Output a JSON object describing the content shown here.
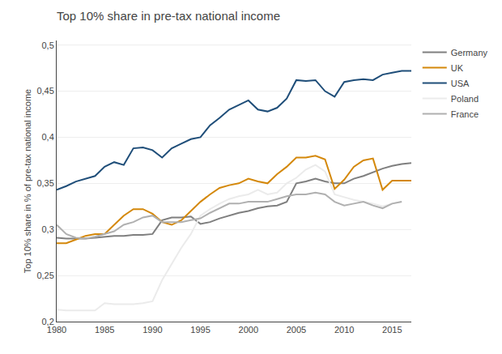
{
  "chart_data": {
    "type": "line",
    "title": "Top 10% share in pre-tax national income",
    "ylabel": "Top 10% share in % of pre-tax national income",
    "x": [
      1980,
      1981,
      1982,
      1983,
      1984,
      1985,
      1986,
      1987,
      1988,
      1989,
      1990,
      1991,
      1992,
      1993,
      1994,
      1995,
      1996,
      1997,
      1998,
      1999,
      2000,
      2001,
      2002,
      2003,
      2004,
      2005,
      2006,
      2007,
      2008,
      2009,
      2010,
      2011,
      2012,
      2013,
      2014,
      2015,
      2016,
      2017
    ],
    "series": [
      {
        "name": "Germany",
        "color": "#7f7f7f",
        "values": [
          0.291,
          0.29,
          0.29,
          0.29,
          0.291,
          0.292,
          0.293,
          0.293,
          0.294,
          0.294,
          0.295,
          0.31,
          0.313,
          0.313,
          0.314,
          0.306,
          0.308,
          0.312,
          0.315,
          0.318,
          0.32,
          0.323,
          0.325,
          0.326,
          0.33,
          0.35,
          0.352,
          0.355,
          0.352,
          0.35,
          0.35,
          0.355,
          0.358,
          0.362,
          0.366,
          0.369,
          0.371,
          0.372
        ]
      },
      {
        "name": "UK",
        "color": "#d4880a",
        "values": [
          0.285,
          0.285,
          0.289,
          0.293,
          0.295,
          0.295,
          0.305,
          0.315,
          0.322,
          0.322,
          0.317,
          0.308,
          0.305,
          0.31,
          0.32,
          0.33,
          0.338,
          0.345,
          0.348,
          0.35,
          0.355,
          0.352,
          0.35,
          0.36,
          0.368,
          0.378,
          0.378,
          0.38,
          0.376,
          0.344,
          0.354,
          0.368,
          0.375,
          0.377,
          0.343,
          0.353,
          0.353,
          0.353
        ]
      },
      {
        "name": "USA",
        "color": "#1f4e79",
        "values": [
          0.343,
          0.347,
          0.352,
          0.355,
          0.358,
          0.368,
          0.373,
          0.37,
          0.388,
          0.389,
          0.386,
          0.378,
          0.388,
          0.393,
          0.398,
          0.4,
          0.413,
          0.421,
          0.43,
          0.435,
          0.44,
          0.43,
          0.428,
          0.432,
          0.442,
          0.462,
          0.461,
          0.462,
          0.45,
          0.444,
          0.46,
          0.462,
          0.463,
          0.462,
          0.468,
          0.47,
          0.472,
          0.472
        ]
      },
      {
        "name": "Poland",
        "color": "#ebebeb",
        "values": [
          0.213,
          0.212,
          0.212,
          0.212,
          0.212,
          0.22,
          0.219,
          0.219,
          0.219,
          0.22,
          0.222,
          0.245,
          0.262,
          0.28,
          0.295,
          0.315,
          0.322,
          0.328,
          0.333,
          0.336,
          0.338,
          0.343,
          0.338,
          0.34,
          0.35,
          0.356,
          0.365,
          0.37,
          0.363,
          0.338,
          0.335,
          0.332,
          0.33,
          0.328,
          0.325,
          0.328,
          0.33,
          null
        ]
      },
      {
        "name": "France",
        "color": "#b0b0b0",
        "values": [
          0.305,
          0.295,
          0.291,
          0.29,
          0.292,
          0.295,
          0.298,
          0.305,
          0.308,
          0.313,
          0.315,
          0.308,
          0.308,
          0.308,
          0.31,
          0.312,
          0.318,
          0.323,
          0.328,
          0.328,
          0.33,
          0.33,
          0.33,
          0.333,
          0.336,
          0.338,
          0.338,
          0.34,
          0.338,
          0.33,
          0.326,
          0.328,
          0.33,
          0.326,
          0.323,
          0.328,
          0.33,
          null
        ]
      }
    ],
    "xlim": [
      1980,
      2017
    ],
    "xticks": [
      1980,
      1985,
      1990,
      1995,
      2000,
      2005,
      2010,
      2015
    ],
    "ylim": [
      0.2,
      0.505
    ],
    "yticks": [
      {
        "value": 0.2,
        "label": "0,2"
      },
      {
        "value": 0.25,
        "label": "0,25"
      },
      {
        "value": 0.3,
        "label": "0,3"
      },
      {
        "value": 0.35,
        "label": "0,35"
      },
      {
        "value": 0.4,
        "label": "0,4"
      },
      {
        "value": 0.45,
        "label": "0,45"
      },
      {
        "value": 0.5,
        "label": "0,5"
      }
    ],
    "grid": "y",
    "legend": "right"
  }
}
